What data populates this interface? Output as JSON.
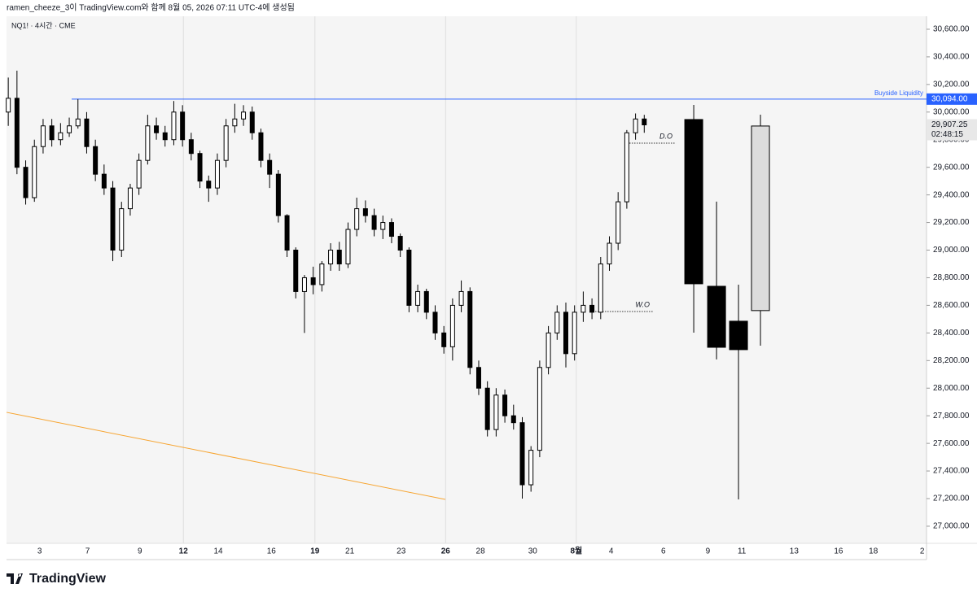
{
  "chart_data": {
    "type": "candlestick",
    "header": "ramen_cheeze_3이 TradingView.com와 함께 8월 05, 2026 07:11 UTC-4에 생성됨",
    "symbol": "NQ1! · 4시간 · CME",
    "logo": "TradingView",
    "xlim": [
      -0.2,
      105.4
    ],
    "xticks": [
      {
        "value": 3.6,
        "label": "3",
        "major": false
      },
      {
        "value": 9.1,
        "label": "7",
        "major": false
      },
      {
        "value": 15.1,
        "label": "9",
        "major": false
      },
      {
        "value": 20.1,
        "label": "12",
        "major": true
      },
      {
        "value": 24.1,
        "label": "14",
        "major": false
      },
      {
        "value": 30.2,
        "label": "16",
        "major": false
      },
      {
        "value": 35.2,
        "label": "19",
        "major": true
      },
      {
        "value": 39.2,
        "label": "21",
        "major": false
      },
      {
        "value": 45.1,
        "label": "23",
        "major": false
      },
      {
        "value": 50.2,
        "label": "26",
        "major": true
      },
      {
        "value": 54.2,
        "label": "28",
        "major": false
      },
      {
        "value": 60.2,
        "label": "30",
        "major": false
      },
      {
        "value": 65.2,
        "label": "8월",
        "major": true
      },
      {
        "value": 69.2,
        "label": "4",
        "major": false
      },
      {
        "value": 75.2,
        "label": "6",
        "major": false
      },
      {
        "value": 80.3,
        "label": "9",
        "major": false
      },
      {
        "value": 84.2,
        "label": "11",
        "major": false
      },
      {
        "value": 90.2,
        "label": "13",
        "major": false
      },
      {
        "value": 95.3,
        "label": "16",
        "major": false
      },
      {
        "value": 99.3,
        "label": "18",
        "major": false
      },
      {
        "value": 104.9,
        "label": "2",
        "major": false
      }
    ],
    "ylim": [
      26876,
      30694
    ],
    "yticks": [
      {
        "value": 27000,
        "label": "27,000.00"
      },
      {
        "value": 27200,
        "label": "27,200.00"
      },
      {
        "value": 27400,
        "label": "27,400.00"
      },
      {
        "value": 27600,
        "label": "27,600.00"
      },
      {
        "value": 27800,
        "label": "27,800.00"
      },
      {
        "value": 28000,
        "label": "28,000.00"
      },
      {
        "value": 28200,
        "label": "28,200.00"
      },
      {
        "value": 28400,
        "label": "28,400.00"
      },
      {
        "value": 28600,
        "label": "28,600.00"
      },
      {
        "value": 28800,
        "label": "28,800.00"
      },
      {
        "value": 29000,
        "label": "29,000.00"
      },
      {
        "value": 29200,
        "label": "29,200.00"
      },
      {
        "value": 29400,
        "label": "29,400.00"
      },
      {
        "value": 29600,
        "label": "29,600.00"
      },
      {
        "value": 29800,
        "label": "29,800.00"
      },
      {
        "value": 30000,
        "label": "30,000.00"
      },
      {
        "value": 30200,
        "label": "30,200.00"
      },
      {
        "value": 30400,
        "label": "30,400.00"
      },
      {
        "value": 30600,
        "label": "30,600.00"
      }
    ],
    "up_color": "#ffffff",
    "down_color": "#000000",
    "open": [
      30000,
      30100,
      29600,
      29380,
      29750,
      29900,
      29800,
      29850,
      29900,
      29950,
      29750,
      29550,
      29450,
      29000,
      29300,
      29450,
      29650,
      29900,
      29850,
      29800,
      30000,
      29800,
      29700,
      29500,
      29450,
      29650,
      29900,
      29950,
      30000,
      29850,
      29650,
      29550,
      29250,
      29000,
      28700,
      28800,
      28750,
      28900,
      29000,
      28900,
      29150,
      29300,
      29250,
      29150,
      29200,
      29100,
      29000,
      28600,
      28700,
      28550,
      28400,
      28300,
      28600,
      28700,
      28150,
      28000,
      27700,
      27950,
      27800,
      27750,
      27300,
      27550,
      28150,
      28400,
      28550,
      28250,
      28550,
      28600,
      28550,
      28900,
      29050,
      29350,
      29850,
      29950
    ],
    "high": [
      30250,
      30300,
      29650,
      29800,
      29950,
      29950,
      29920,
      29960,
      30094,
      30000,
      29800,
      29620,
      29500,
      29350,
      29480,
      29700,
      29980,
      29960,
      29900,
      30080,
      30050,
      29850,
      29720,
      29540,
      29700,
      29950,
      30060,
      30050,
      30040,
      29880,
      29700,
      29580,
      29260,
      29020,
      28820,
      28880,
      28920,
      29050,
      29060,
      29200,
      29380,
      29360,
      29300,
      29250,
      29230,
      29120,
      29020,
      28750,
      28720,
      28600,
      28450,
      28650,
      28780,
      28730,
      28200,
      28050,
      28000,
      27990,
      27880,
      27790,
      27580,
      28200,
      28450,
      28600,
      28620,
      28600,
      28700,
      28650,
      28950,
      29100,
      29420,
      29870,
      29990,
      29980
    ],
    "low": [
      29900,
      29550,
      29330,
      29350,
      29700,
      29750,
      29760,
      29820,
      29880,
      29700,
      29500,
      29400,
      28920,
      28950,
      29250,
      29400,
      29620,
      29800,
      29750,
      29760,
      29750,
      29650,
      29450,
      29350,
      29400,
      29600,
      29850,
      29900,
      29800,
      29600,
      29450,
      29200,
      28950,
      28650,
      28400,
      28680,
      28700,
      28850,
      28850,
      28870,
      29100,
      29200,
      29100,
      29080,
      29050,
      28950,
      28550,
      28550,
      28500,
      28350,
      28250,
      28200,
      28550,
      28100,
      27950,
      27650,
      27650,
      27750,
      27700,
      27200,
      27250,
      27500,
      28100,
      28350,
      28150,
      28200,
      28480,
      28500,
      28500,
      28850,
      29000,
      29300,
      29800,
      29850
    ],
    "close": [
      30100,
      29600,
      29380,
      29750,
      29900,
      29800,
      29850,
      29900,
      29950,
      29750,
      29550,
      29450,
      29000,
      29300,
      29450,
      29650,
      29900,
      29850,
      29800,
      30000,
      29800,
      29700,
      29500,
      29450,
      29650,
      29900,
      29950,
      30000,
      29850,
      29650,
      29550,
      29250,
      29000,
      28700,
      28800,
      28750,
      28900,
      29000,
      28900,
      29150,
      29300,
      29250,
      29150,
      29200,
      29100,
      29000,
      28600,
      28700,
      28550,
      28400,
      28300,
      28600,
      28700,
      28150,
      28000,
      27700,
      27950,
      27800,
      27750,
      27300,
      27550,
      28150,
      28400,
      28550,
      28250,
      28550,
      28600,
      28550,
      28900,
      29050,
      29350,
      29850,
      29950,
      29907.25
    ],
    "projection": {
      "x": [
        78.68,
        81.3,
        83.82,
        86.34
      ],
      "open": [
        29946,
        28738,
        28485,
        28562
      ],
      "high": [
        30052,
        29351,
        28750,
        29981
      ],
      "low": [
        28402,
        28208,
        27194,
        28308
      ],
      "close": [
        28756,
        28296,
        28279,
        29899
      ],
      "colors": [
        "#000000",
        "#000000",
        "#000000",
        "#dcdcdc"
      ]
    },
    "trend_line": {
      "x": [
        -0.2,
        50.17
      ],
      "y": [
        27825,
        27194
      ],
      "color": "#f7a531"
    },
    "liquidity": {
      "name": "Buyside Liquidity",
      "value": 30094,
      "value_label": "30,094.00",
      "x_start": 7.28,
      "color": "#2962ff"
    },
    "levels": [
      {
        "name": "D.O",
        "value": 29775,
        "x": [
          71.01,
          76.62
        ]
      },
      {
        "name": "W.O",
        "value": 28555,
        "x": [
          67.09,
          74.0
        ]
      }
    ],
    "last_price": {
      "value": 29907.25,
      "label": "29,907.25",
      "countdown": "02:48:15"
    }
  }
}
